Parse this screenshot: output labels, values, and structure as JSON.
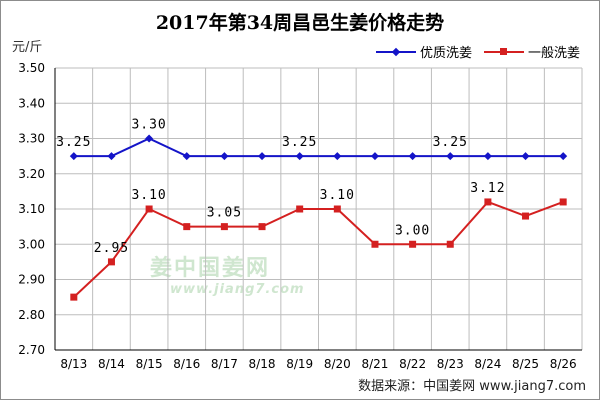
{
  "title": "2017年第34周昌邑生姜价格走势",
  "unit_label": "元/斤",
  "source_text": "数据来源：中国姜网 www.jiang7.com",
  "watermark": {
    "logo_text": "姜中国姜网",
    "url_text": "www.jiang7.com"
  },
  "colors": {
    "premium": "#1414c8",
    "general": "#d42020",
    "grid": "#bdbdbd"
  },
  "chart_data": {
    "type": "line",
    "title": "2017年第34周昌邑生姜价格走势",
    "ylabel": "元/斤",
    "xlabel": "",
    "categories": [
      "8/13",
      "8/14",
      "8/15",
      "8/16",
      "8/17",
      "8/18",
      "8/19",
      "8/20",
      "8/21",
      "8/22",
      "8/23",
      "8/24",
      "8/25",
      "8/26"
    ],
    "ylim": [
      2.7,
      3.5
    ],
    "yticks": [
      "3.50",
      "3.40",
      "3.30",
      "3.20",
      "3.10",
      "3.00",
      "2.90",
      "2.80",
      "2.70"
    ],
    "grid": true,
    "legend_position": "top-right",
    "series": [
      {
        "name": "优质洗姜",
        "marker": "diamond",
        "values": [
          3.25,
          3.25,
          3.3,
          3.25,
          3.25,
          3.25,
          3.25,
          3.25,
          3.25,
          3.25,
          3.25,
          3.25,
          3.25,
          3.25
        ],
        "data_labels": [
          {
            "index": 0,
            "text": "3.25"
          },
          {
            "index": 2,
            "text": "3.30"
          },
          {
            "index": 6,
            "text": "3.25"
          },
          {
            "index": 10,
            "text": "3.25"
          }
        ]
      },
      {
        "name": "一般洗姜",
        "marker": "square",
        "values": [
          2.85,
          2.95,
          3.1,
          3.05,
          3.05,
          3.05,
          3.1,
          3.1,
          3.0,
          3.0,
          3.0,
          3.12,
          3.08,
          3.12
        ],
        "data_labels": [
          {
            "index": 1,
            "text": "2.95"
          },
          {
            "index": 2,
            "text": "3.10"
          },
          {
            "index": 4,
            "text": "3.05"
          },
          {
            "index": 7,
            "text": "3.10"
          },
          {
            "index": 9,
            "text": "3.00"
          },
          {
            "index": 11,
            "text": "3.12"
          }
        ]
      }
    ]
  }
}
